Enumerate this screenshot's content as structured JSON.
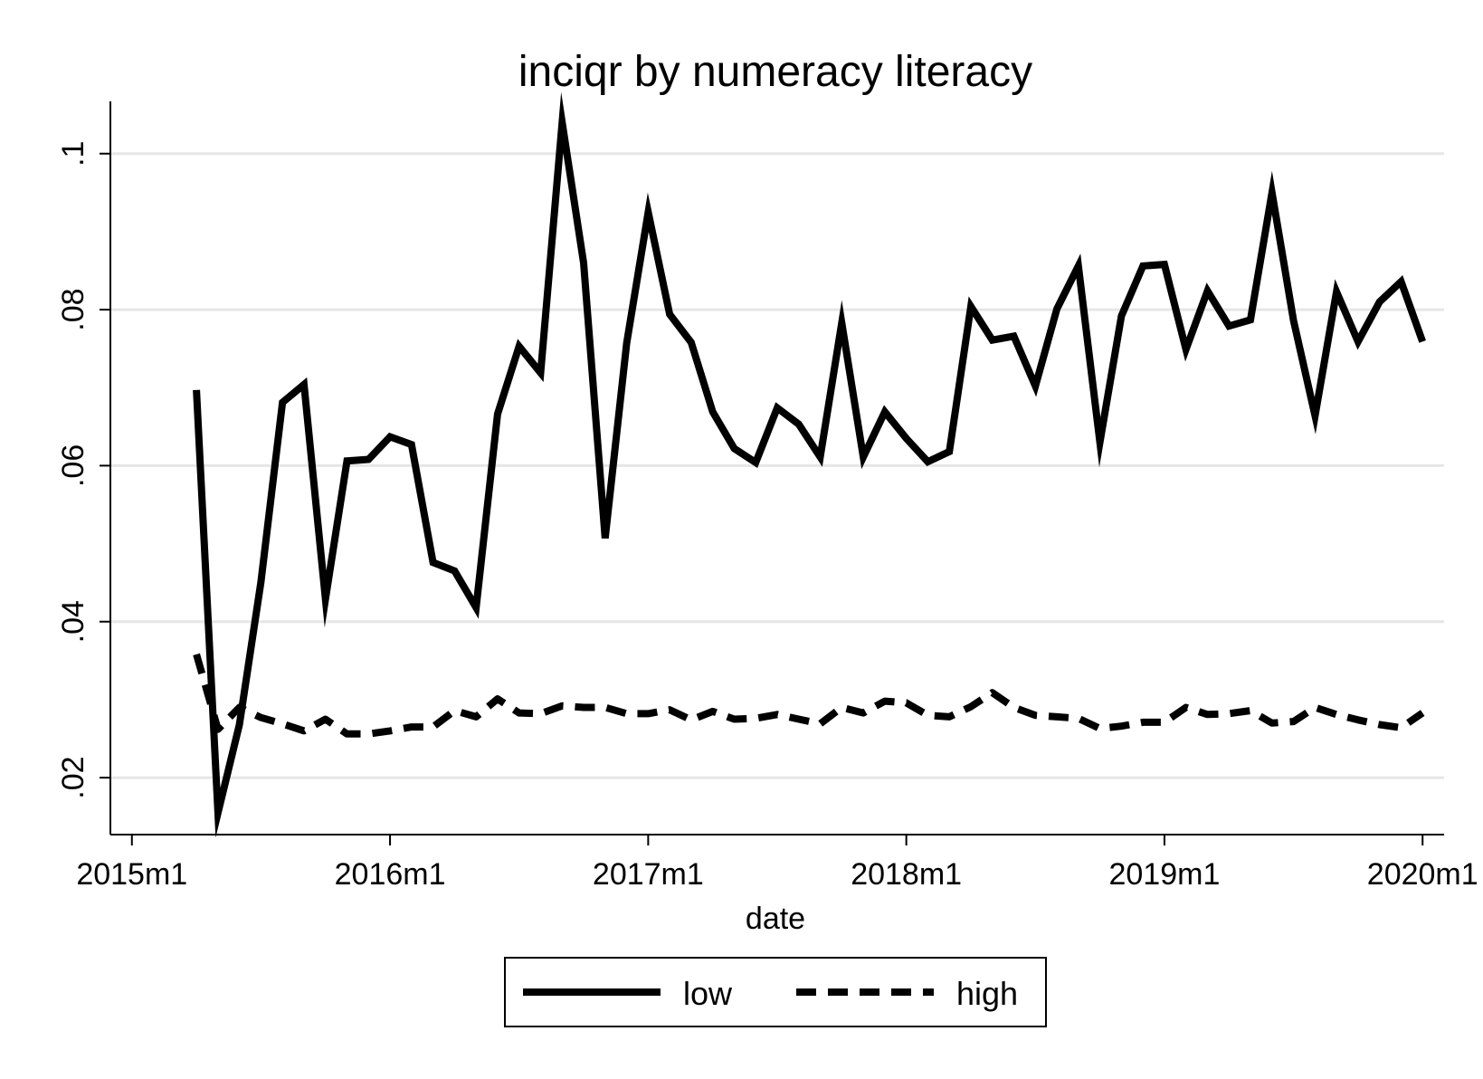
{
  "chart_data": {
    "type": "line",
    "title": "inciqr by numeracy literacy",
    "xlabel": "date",
    "ylabel": "",
    "x_tick_labels": [
      "2015m1",
      "2016m1",
      "2017m1",
      "2018m1",
      "2019m1",
      "2020m1"
    ],
    "y_tick_labels": [
      ".02",
      ".04",
      ".06",
      ".08",
      ".1"
    ],
    "y_ticks": [
      0.02,
      0.04,
      0.06,
      0.08,
      0.1
    ],
    "x_ticks": [
      "2015-01",
      "2016-01",
      "2017-01",
      "2018-01",
      "2019-01",
      "2020-01"
    ],
    "xlim": [
      "2014-12",
      "2020-02"
    ],
    "ylim": [
      0.0127,
      0.1067
    ],
    "grid": true,
    "legend_position": "bottom",
    "x": [
      "2015-04",
      "2015-05",
      "2015-06",
      "2015-07",
      "2015-08",
      "2015-09",
      "2015-10",
      "2015-11",
      "2015-12",
      "2016-01",
      "2016-02",
      "2016-03",
      "2016-04",
      "2016-05",
      "2016-06",
      "2016-07",
      "2016-08",
      "2016-09",
      "2016-10",
      "2016-11",
      "2016-12",
      "2017-01",
      "2017-02",
      "2017-03",
      "2017-04",
      "2017-05",
      "2017-06",
      "2017-07",
      "2017-08",
      "2017-09",
      "2017-10",
      "2017-11",
      "2017-12",
      "2018-01",
      "2018-02",
      "2018-03",
      "2018-04",
      "2018-05",
      "2018-06",
      "2018-07",
      "2018-08",
      "2018-09",
      "2018-10",
      "2018-11",
      "2018-12",
      "2019-01",
      "2019-02",
      "2019-03",
      "2019-04",
      "2019-05",
      "2019-06",
      "2019-07",
      "2019-08",
      "2019-09",
      "2019-10",
      "2019-11",
      "2019-12",
      "2020-01"
    ],
    "series": [
      {
        "name": "low",
        "style": "solid",
        "color": "#000000",
        "values": [
          0.0697,
          0.0155,
          0.0268,
          0.0451,
          0.0681,
          0.0704,
          0.0429,
          0.0606,
          0.0608,
          0.0637,
          0.0627,
          0.0476,
          0.0465,
          0.0418,
          0.0666,
          0.0753,
          0.0719,
          0.104,
          0.086,
          0.0507,
          0.0757,
          0.0925,
          0.0794,
          0.0758,
          0.0669,
          0.0622,
          0.0604,
          0.0674,
          0.0653,
          0.0611,
          0.0783,
          0.0611,
          0.0669,
          0.0635,
          0.0605,
          0.0618,
          0.0804,
          0.0761,
          0.0766,
          0.0702,
          0.0801,
          0.0856,
          0.063,
          0.0792,
          0.0856,
          0.0858,
          0.0749,
          0.0824,
          0.0779,
          0.0787,
          0.095,
          0.0786,
          0.0664,
          0.0823,
          0.0759,
          0.081,
          0.0836,
          0.0759
        ]
      },
      {
        "name": "high",
        "style": "dashed",
        "color": "#000000",
        "values": [
          0.0358,
          0.0262,
          0.029,
          0.0277,
          0.0269,
          0.026,
          0.0275,
          0.0256,
          0.0256,
          0.026,
          0.0265,
          0.0265,
          0.0286,
          0.0278,
          0.0301,
          0.0283,
          0.0282,
          0.0292,
          0.029,
          0.029,
          0.0282,
          0.0282,
          0.0287,
          0.0274,
          0.0285,
          0.0275,
          0.0276,
          0.0281,
          0.0275,
          0.0269,
          0.029,
          0.0283,
          0.0298,
          0.0296,
          0.028,
          0.0278,
          0.0291,
          0.0309,
          0.029,
          0.028,
          0.0278,
          0.0276,
          0.0263,
          0.0266,
          0.0271,
          0.0271,
          0.029,
          0.0281,
          0.0282,
          0.0286,
          0.027,
          0.0272,
          0.029,
          0.0281,
          0.0274,
          0.0268,
          0.0264,
          0.0283
        ]
      }
    ]
  }
}
